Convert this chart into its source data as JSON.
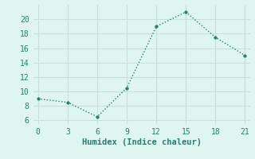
{
  "x": [
    0,
    3,
    6,
    9,
    12,
    15,
    18,
    21
  ],
  "y": [
    9.0,
    8.5,
    6.5,
    10.5,
    19.0,
    21.0,
    17.5,
    15.0
  ],
  "line_color": "#2a7d6e",
  "marker": "o",
  "marker_size": 2.5,
  "line_width": 1.0,
  "line_style": ":",
  "xlabel": "Humidex (Indice chaleur)",
  "xlim": [
    -0.5,
    21.5
  ],
  "ylim": [
    5.5,
    22
  ],
  "xticks": [
    0,
    3,
    6,
    9,
    12,
    15,
    18,
    21
  ],
  "yticks": [
    6,
    8,
    10,
    12,
    14,
    16,
    18,
    20
  ],
  "background_color": "#dff5f0",
  "grid_color": "#c8e0db",
  "font_color": "#2a7d6e",
  "font_family": "monospace",
  "xlabel_fontsize": 7.5,
  "tick_fontsize": 7
}
